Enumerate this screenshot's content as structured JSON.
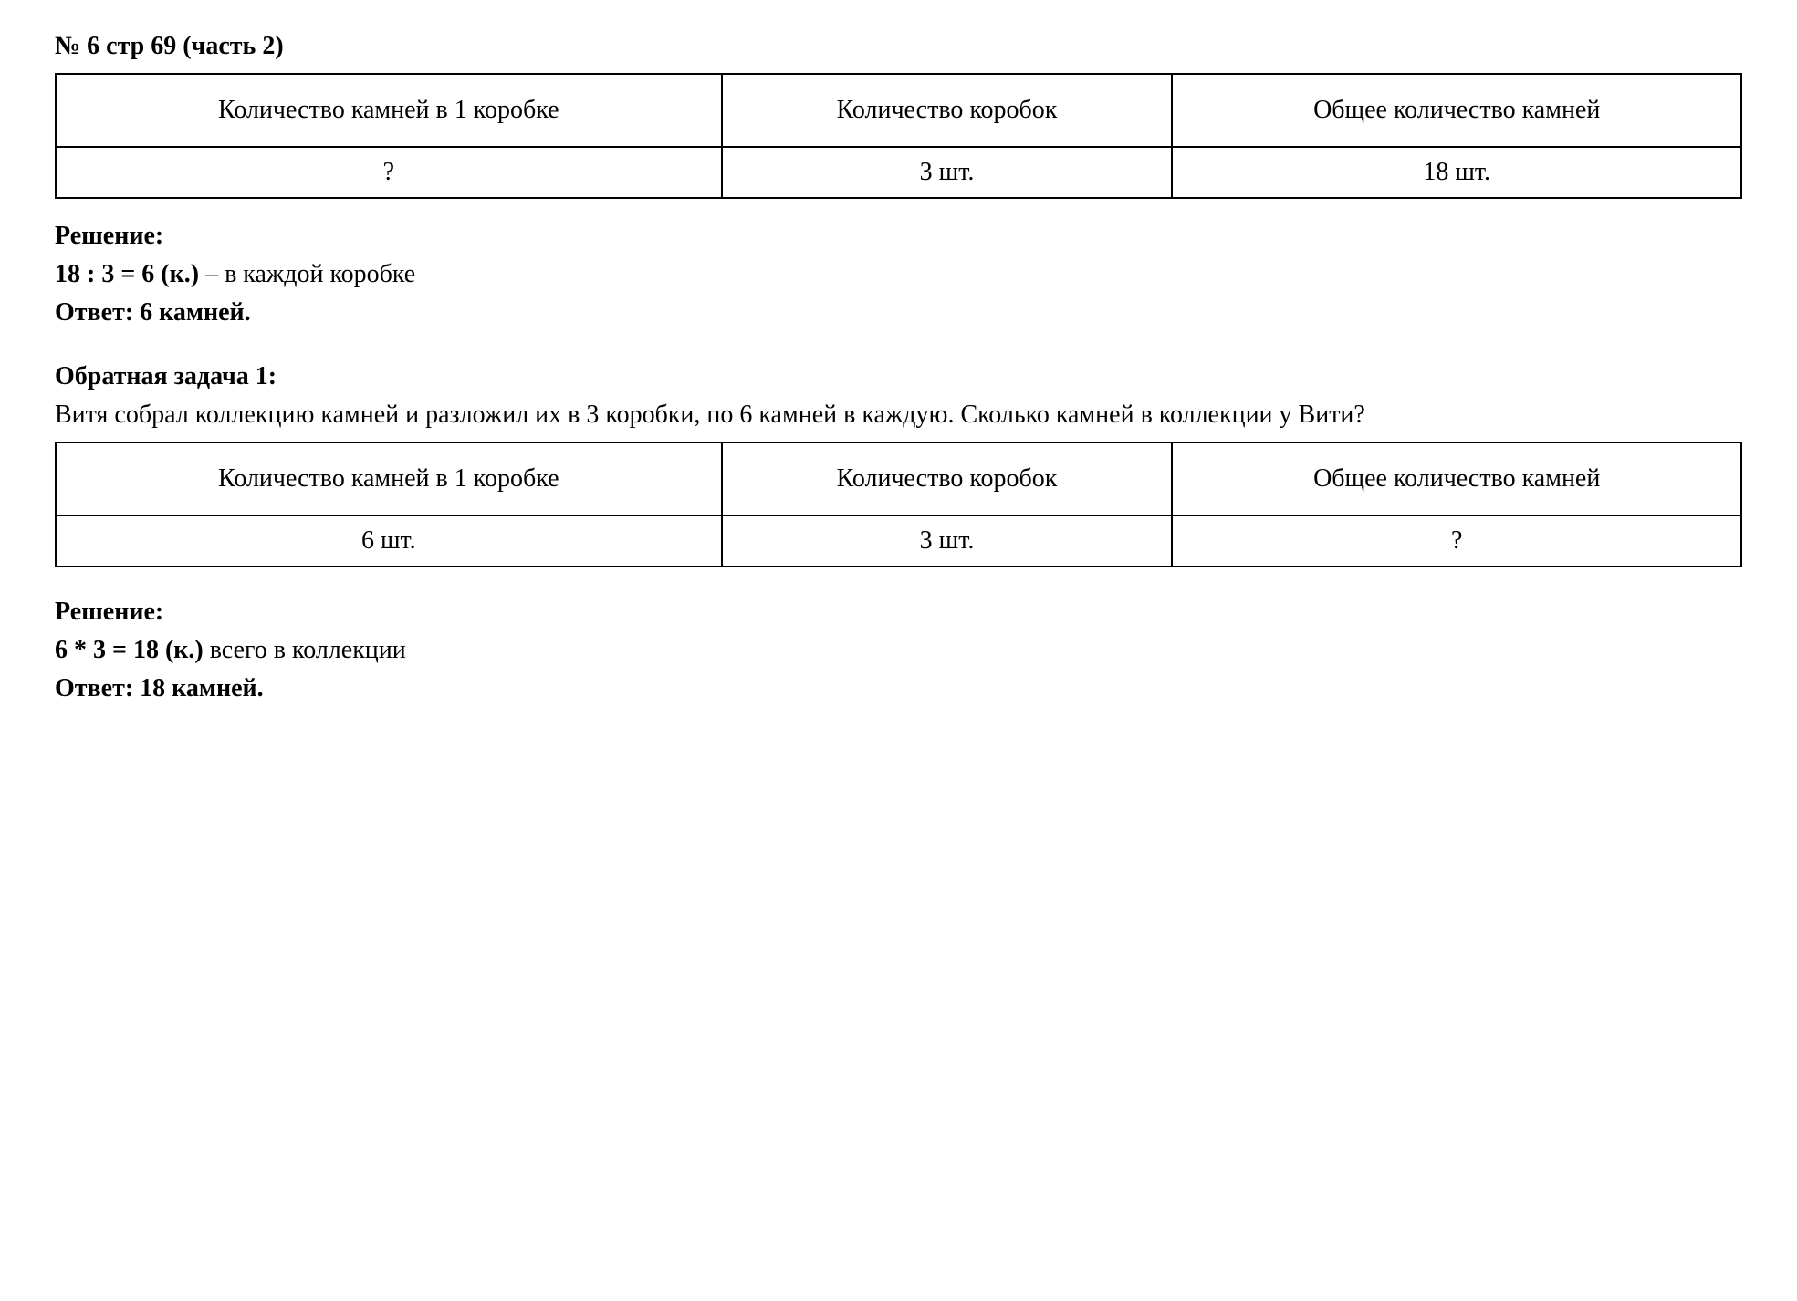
{
  "title": "№ 6 стр 69 (часть 2)",
  "colors": {
    "background": "#ffffff",
    "text": "#000000",
    "border": "#000000"
  },
  "typography": {
    "font_family": "Times New Roman",
    "body_fontsize": 28,
    "title_fontsize": 28
  },
  "table1": {
    "type": "table",
    "columns": [
      "Количество камней в 1 коробке",
      "Количество коробок",
      "Общее количество камней"
    ],
    "rows": [
      [
        "?",
        "3 шт.",
        "18 шт."
      ]
    ],
    "border_color": "#000000",
    "border_width": 2
  },
  "solution1": {
    "label": "Решение:",
    "calc": "18 : 3 = 6 (к.)",
    "calc_desc": " – в каждой коробке",
    "answer_label": "Ответ: 6 камней."
  },
  "reverse_problem": {
    "heading": "Обратная задача 1:",
    "text": "Витя собрал коллекцию камней и разложил их в 3 коробки, по 6 камней в каждую. Сколько камней в коллекции у Вити?"
  },
  "table2": {
    "type": "table",
    "columns": [
      "Количество камней в 1 коробке",
      "Количество коробок",
      "Общее количество камней"
    ],
    "rows": [
      [
        "6 шт.",
        "3 шт.",
        "?"
      ]
    ],
    "border_color": "#000000",
    "border_width": 2
  },
  "solution2": {
    "label": "Решение:",
    "calc": "6 * 3 = 18 (к.)",
    "calc_desc": " всего в коллекции",
    "answer_label": "Ответ: 18 камней."
  }
}
